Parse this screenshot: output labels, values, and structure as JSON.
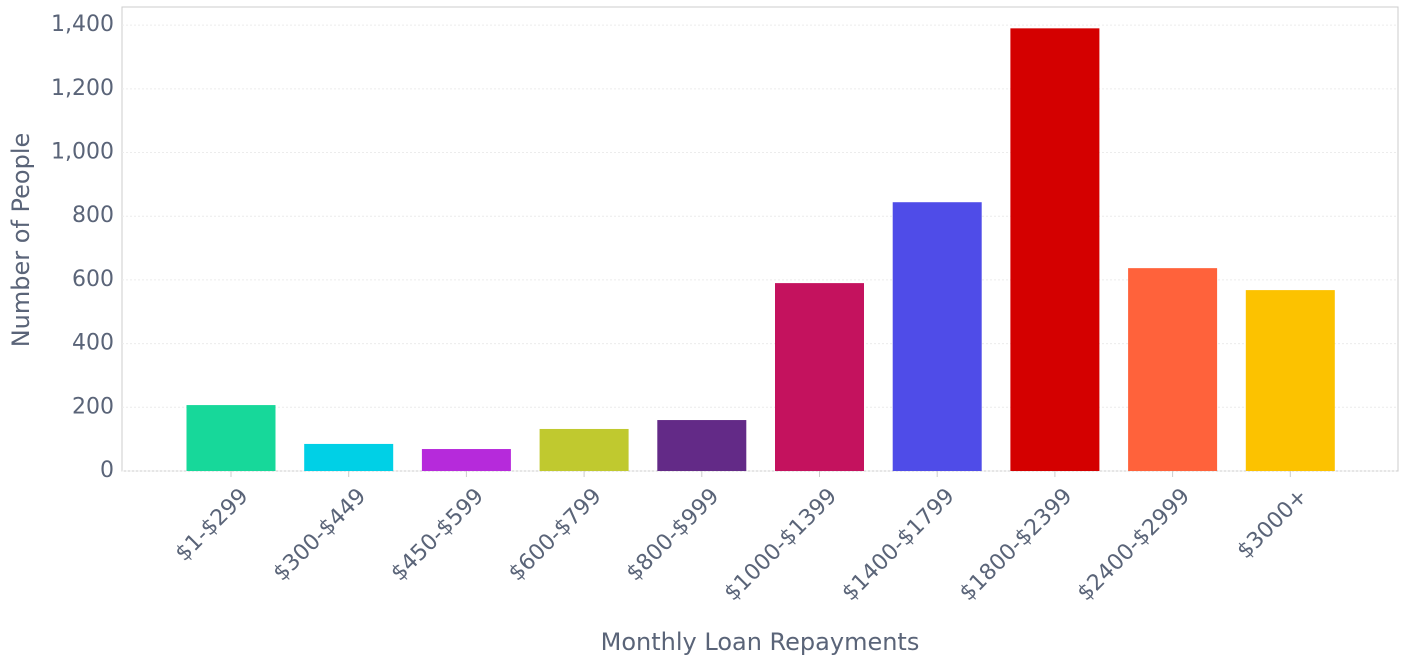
{
  "chart_data": {
    "type": "bar",
    "x_label": "Monthly Loan Repayments",
    "y_label": "Number of People",
    "categories": [
      "$1-$299",
      "$300-$449",
      "$450-$599",
      "$600-$799",
      "$800-$999",
      "$1000-$1399",
      "$1400-$1799",
      "$1800-$2399",
      "$2400-$2999",
      "$3000+"
    ],
    "values": [
      207,
      85,
      69,
      132,
      160,
      590,
      844,
      1390,
      637,
      568
    ],
    "colors": [
      "#17d89a",
      "#00d0e6",
      "#b62adb",
      "#c0c92f",
      "#632a87",
      "#c4125e",
      "#4f4ce8",
      "#d40000",
      "#ff623b",
      "#fcc200"
    ],
    "ylim": [
      0,
      1457
    ],
    "yticks": [
      0,
      200,
      400,
      600,
      800,
      {
        "value": 1000,
        "label": "1,000"
      },
      {
        "value": 1200,
        "label": "1,200"
      },
      {
        "value": 1400,
        "label": "1,400"
      }
    ],
    "grid": true
  }
}
